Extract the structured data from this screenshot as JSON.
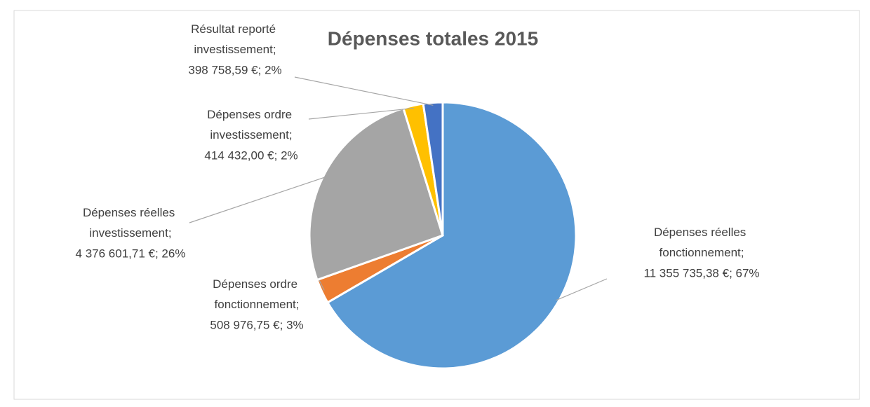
{
  "chart_data": {
    "type": "pie",
    "title": "Dépenses totales 2015",
    "categories": [
      "Dépenses réelles fonctionnement;",
      "Dépenses ordre fonctionnement;",
      "Dépenses réelles investissement;",
      "Dépenses ordre investissement;",
      "Résultat reporté investissement;"
    ],
    "values": [
      11355735.38,
      508976.75,
      4376601.71,
      414432.0,
      398758.59
    ],
    "value_labels": [
      "11 355 735,38 €; 67%",
      "508 976,75 €; 3%",
      "4 376 601,71 €; 26%",
      "414 432,00 €; 2%",
      "398 758,59 €; 2%"
    ],
    "colors": [
      "#5b9bd5",
      "#ed7d31",
      "#a5a5a5",
      "#ffc000",
      "#4472c4"
    ]
  }
}
